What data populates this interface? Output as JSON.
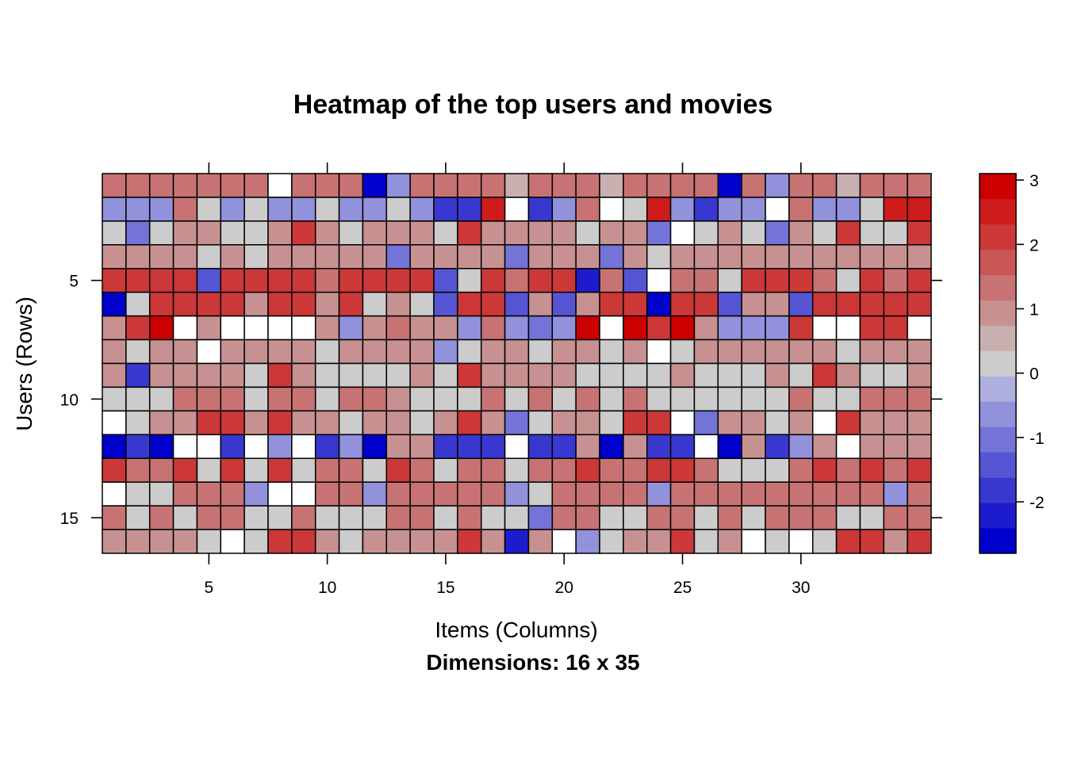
{
  "chart_data": {
    "type": "heatmap",
    "title": "Heatmap of the top users and movies",
    "xlabel": "Items (Columns)",
    "ylabel": "Users (Rows)",
    "sub": "Dimensions: 16 x 35",
    "n_rows": 16,
    "n_cols": 35,
    "xticks": [
      5,
      10,
      15,
      20,
      25,
      30
    ],
    "yticks": [
      5,
      10,
      15
    ],
    "colorbar": {
      "ticks": [
        -2,
        -1,
        0,
        1,
        2,
        3
      ],
      "tick_labels": [
        "-2",
        "-1",
        "0",
        "1",
        "2",
        "3"
      ],
      "range": [
        -2.8,
        3.1
      ]
    },
    "missing_color": "#ffffff",
    "values": [
      [
        1.5,
        1.5,
        1.5,
        1.5,
        1.5,
        1.5,
        1.5,
        null,
        1.5,
        1.5,
        1.5,
        -2.5,
        -0.5,
        1.5,
        1.5,
        1.5,
        1.5,
        0.5,
        1.5,
        1.5,
        1.5,
        0.5,
        1.5,
        1.5,
        1.5,
        1.5,
        -2.5,
        1.5,
        -0.5,
        1.5,
        1.5,
        0.5,
        1.5,
        1.5,
        1.5
      ],
      [
        -0.5,
        -0.5,
        -0.5,
        1.5,
        0.3,
        -0.5,
        0.3,
        -0.5,
        -0.5,
        0.3,
        -0.5,
        -0.5,
        0.3,
        -0.5,
        -1.8,
        -1.8,
        2.5,
        null,
        -1.8,
        -0.5,
        1.5,
        null,
        0.3,
        2.5,
        -0.5,
        -1.8,
        -0.5,
        -0.5,
        null,
        1.5,
        -0.5,
        -0.5,
        0.3,
        2.5,
        2.5
      ],
      [
        0.3,
        -1.0,
        0.3,
        1.0,
        1.0,
        0.3,
        0.3,
        1.0,
        2.0,
        1.0,
        0.3,
        1.0,
        1.0,
        1.0,
        0.3,
        2.0,
        1.0,
        1.0,
        1.0,
        1.0,
        0.3,
        1.0,
        1.0,
        -1.0,
        null,
        0.3,
        1.0,
        0.3,
        -1.0,
        1.0,
        0.3,
        2.0,
        0.3,
        0.3,
        2.0
      ],
      [
        1.0,
        1.0,
        1.0,
        1.0,
        0.0,
        1.0,
        0.0,
        1.0,
        1.0,
        1.0,
        1.0,
        1.0,
        -1.0,
        1.0,
        1.0,
        1.0,
        1.0,
        -1.0,
        1.0,
        1.0,
        1.0,
        -1.0,
        1.0,
        0.0,
        1.0,
        1.0,
        1.0,
        1.0,
        1.0,
        1.0,
        1.0,
        1.0,
        1.0,
        1.0,
        1.0
      ],
      [
        2.0,
        2.0,
        2.0,
        2.0,
        -1.5,
        2.0,
        2.0,
        2.0,
        2.0,
        1.5,
        2.0,
        2.0,
        2.0,
        2.0,
        -1.5,
        0.0,
        2.0,
        1.5,
        2.0,
        2.0,
        -2.3,
        1.5,
        -1.5,
        null,
        1.5,
        1.5,
        0.0,
        2.0,
        2.0,
        2.0,
        1.5,
        0.0,
        2.0,
        1.5,
        2.0
      ],
      [
        -2.5,
        0.0,
        2.0,
        2.0,
        2.0,
        2.0,
        1.0,
        2.0,
        2.0,
        1.0,
        2.0,
        0.0,
        1.0,
        0.0,
        -1.5,
        2.0,
        2.0,
        -1.5,
        1.0,
        -1.5,
        1.0,
        2.0,
        2.0,
        -2.5,
        2.0,
        2.0,
        -1.5,
        1.0,
        1.0,
        -1.5,
        2.0,
        2.0,
        2.0,
        2.0,
        2.0
      ],
      [
        1.0,
        2.0,
        3.0,
        null,
        1.0,
        null,
        null,
        null,
        null,
        1.0,
        -0.5,
        1.0,
        1.5,
        1.0,
        1.0,
        -0.5,
        1.5,
        -0.5,
        -1.2,
        -0.5,
        3.0,
        null,
        3.0,
        2.0,
        3.0,
        1.0,
        -0.5,
        -0.5,
        -0.5,
        2.0,
        null,
        null,
        2.0,
        2.0,
        null
      ],
      [
        1.0,
        0.3,
        1.0,
        1.0,
        null,
        1.0,
        1.0,
        1.0,
        1.0,
        0.3,
        1.0,
        1.0,
        1.0,
        1.0,
        -0.8,
        0.3,
        1.0,
        1.0,
        0.3,
        1.0,
        1.0,
        0.3,
        1.0,
        null,
        0.3,
        1.0,
        1.0,
        1.0,
        1.0,
        1.0,
        1.0,
        0.3,
        1.0,
        1.0,
        1.0
      ],
      [
        1.0,
        -2.0,
        1.0,
        1.0,
        1.0,
        1.0,
        0.0,
        2.0,
        1.0,
        0.0,
        0.0,
        0.0,
        0.0,
        1.0,
        0.0,
        2.0,
        1.0,
        1.0,
        1.0,
        1.0,
        0.0,
        0.0,
        0.0,
        0.0,
        1.0,
        0.0,
        0.0,
        0.0,
        1.0,
        0.0,
        2.0,
        1.0,
        0.0,
        0.0,
        1.0
      ],
      [
        0.3,
        0.3,
        0.3,
        1.5,
        1.5,
        1.5,
        0.3,
        1.5,
        1.5,
        0.3,
        1.5,
        1.5,
        1.0,
        0.3,
        0.3,
        0.3,
        1.5,
        0.3,
        1.5,
        0.3,
        1.5,
        0.3,
        1.5,
        0.3,
        0.3,
        0.3,
        0.3,
        0.3,
        0.3,
        1.5,
        0.3,
        0.3,
        1.5,
        1.5,
        1.5
      ],
      [
        null,
        0.0,
        1.0,
        1.0,
        2.0,
        2.0,
        1.0,
        2.0,
        1.0,
        1.0,
        0.0,
        1.0,
        1.0,
        0.0,
        1.0,
        2.0,
        1.0,
        -1.2,
        0.0,
        1.0,
        1.0,
        0.0,
        2.0,
        2.0,
        null,
        -1.2,
        1.0,
        1.0,
        0.0,
        1.0,
        null,
        2.0,
        1.0,
        1.0,
        1.0
      ],
      [
        -2.7,
        -1.8,
        -2.7,
        null,
        null,
        -2.0,
        null,
        -0.5,
        null,
        -1.8,
        -0.5,
        -2.7,
        1.0,
        1.0,
        -1.8,
        -1.8,
        -1.8,
        null,
        -1.8,
        -1.8,
        1.0,
        -2.7,
        1.0,
        -1.8,
        -1.8,
        null,
        -2.7,
        1.0,
        -1.8,
        -0.5,
        1.0,
        null,
        1.0,
        1.0,
        1.0
      ],
      [
        2.2,
        1.5,
        1.5,
        2.2,
        0.3,
        2.2,
        0.3,
        2.2,
        0.3,
        1.5,
        1.5,
        0.3,
        2.2,
        1.5,
        0.3,
        1.5,
        1.5,
        0.3,
        1.5,
        1.5,
        2.2,
        1.5,
        1.5,
        2.2,
        2.2,
        1.5,
        0.3,
        0.3,
        0.3,
        1.5,
        2.2,
        1.5,
        2.2,
        1.5,
        2.2
      ],
      [
        null,
        0.3,
        0.3,
        1.5,
        1.5,
        1.5,
        -0.5,
        null,
        null,
        1.5,
        1.5,
        -0.5,
        1.5,
        1.5,
        1.5,
        1.5,
        1.5,
        -0.5,
        0.3,
        1.5,
        1.5,
        1.5,
        1.5,
        -0.5,
        1.5,
        1.5,
        1.5,
        1.5,
        1.5,
        1.5,
        1.5,
        1.5,
        1.5,
        -0.5,
        1.5
      ],
      [
        1.5,
        0.3,
        1.5,
        0.3,
        1.5,
        1.5,
        0.3,
        0.3,
        1.5,
        0.3,
        0.3,
        0.3,
        1.5,
        1.5,
        0.3,
        1.5,
        0.3,
        0.3,
        -1.0,
        1.5,
        1.5,
        0.3,
        0.3,
        1.5,
        1.5,
        0.3,
        1.5,
        0.3,
        1.5,
        1.5,
        1.5,
        0.3,
        0.3,
        1.5,
        1.5
      ],
      [
        1.0,
        1.0,
        1.0,
        1.0,
        0.3,
        null,
        0.3,
        2.2,
        2.2,
        1.0,
        0.3,
        1.0,
        1.0,
        1.0,
        1.0,
        2.2,
        1.0,
        -2.3,
        1.0,
        null,
        -0.8,
        0.3,
        1.0,
        1.0,
        2.2,
        0.3,
        1.0,
        null,
        0.3,
        null,
        0.3,
        2.2,
        2.2,
        1.0,
        2.2
      ]
    ]
  },
  "colors": {
    "palette": [
      "#0000CC",
      "#1C1CCE",
      "#3838D0",
      "#5555D4",
      "#7373D8",
      "#9191DC",
      "#AFAFDF",
      "#CCCCCC",
      "#C9B0B0",
      "#C89191",
      "#C87373",
      "#CA5555",
      "#CC3838",
      "#CE1C1C",
      "#CC0000"
    ]
  }
}
